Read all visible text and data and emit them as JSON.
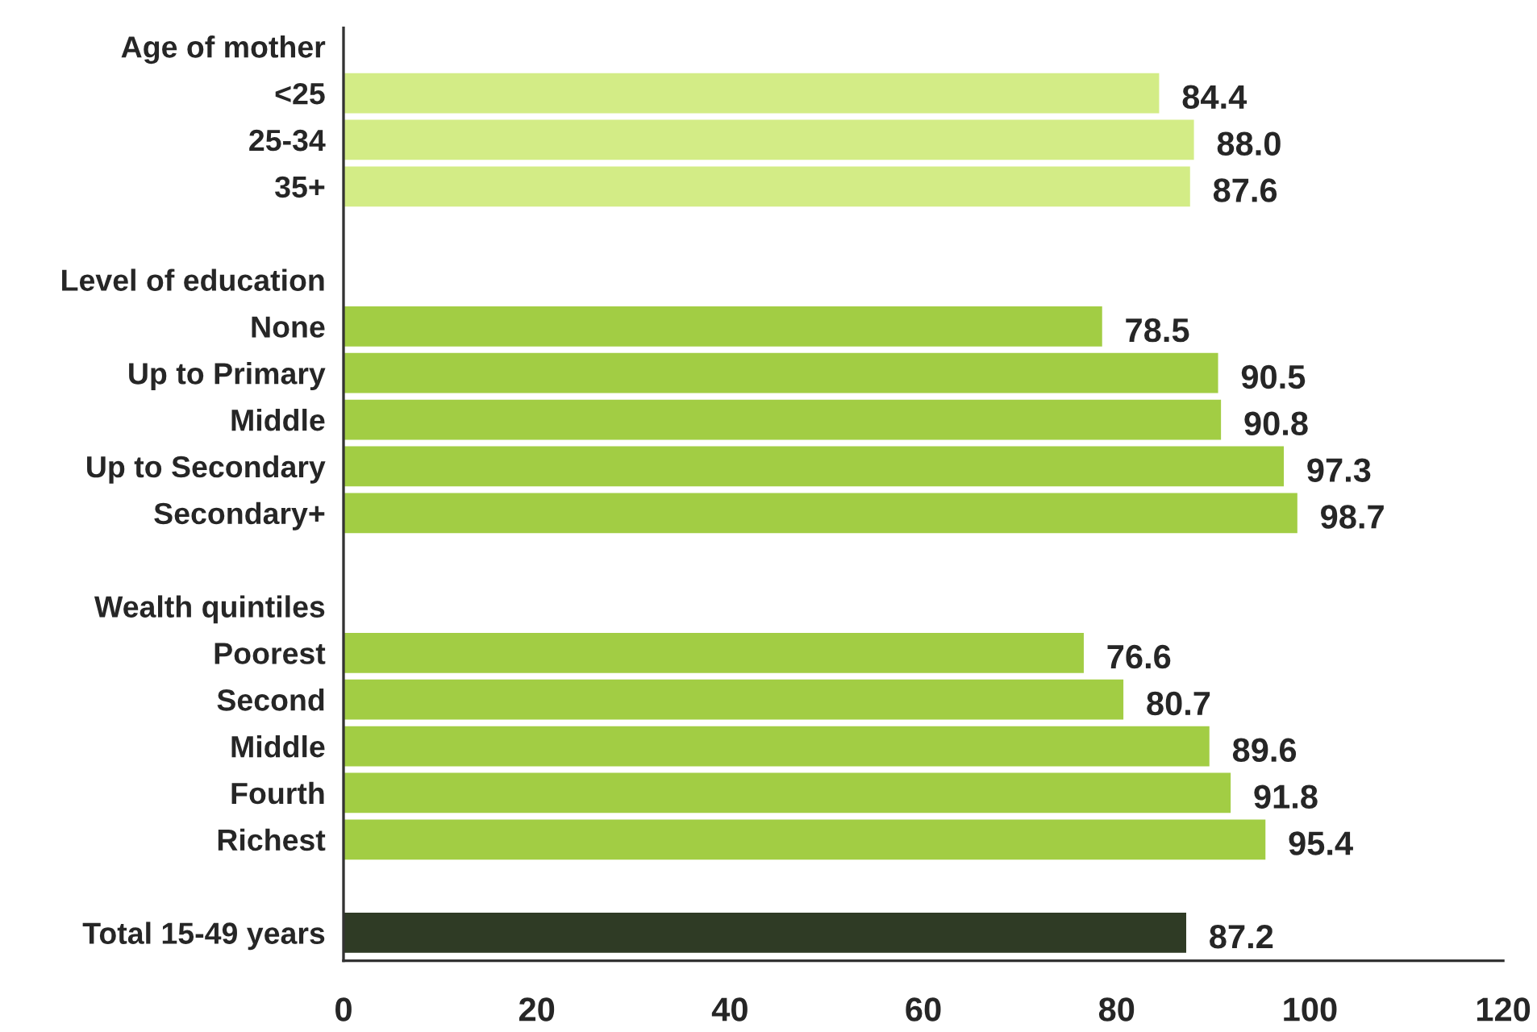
{
  "chart_data": {
    "type": "bar",
    "orientation": "horizontal",
    "categories": [
      "Age of mother",
      "<25",
      "25-34",
      "35+",
      null,
      "Level of education",
      "None",
      "Up to Primary",
      "Middle",
      "Up to Secondary",
      "Secondary+",
      null,
      "Wealth quintiles",
      "Poorest",
      "Second",
      "Middle",
      "Fourth",
      "Richest",
      null,
      "Total 15-49 years"
    ],
    "values": [
      null,
      84.4,
      88.0,
      87.6,
      null,
      null,
      78.5,
      90.5,
      90.8,
      97.3,
      98.7,
      null,
      null,
      76.6,
      80.7,
      89.6,
      91.8,
      95.4,
      null,
      87.2
    ],
    "colors": [
      null,
      "#d3ec86",
      "#d3ec86",
      "#d3ec86",
      null,
      null,
      "#a2cd44",
      "#a2cd44",
      "#a2cd44",
      "#a2cd44",
      "#a2cd44",
      null,
      null,
      "#a2cd44",
      "#a2cd44",
      "#a2cd44",
      "#a2cd44",
      "#a2cd44",
      null,
      "#2f3b25"
    ],
    "value_labels": [
      null,
      "84.4",
      "88.0",
      "87.6",
      null,
      null,
      "78.5",
      "90.5",
      "90.8",
      "97.3",
      "98.7",
      null,
      null,
      "76.6",
      "80.7",
      "89.6",
      "91.8",
      "95.4",
      null,
      "87.2"
    ],
    "xlim": [
      0,
      120
    ],
    "xticks": [
      0,
      20,
      40,
      60,
      80,
      100,
      120
    ]
  }
}
